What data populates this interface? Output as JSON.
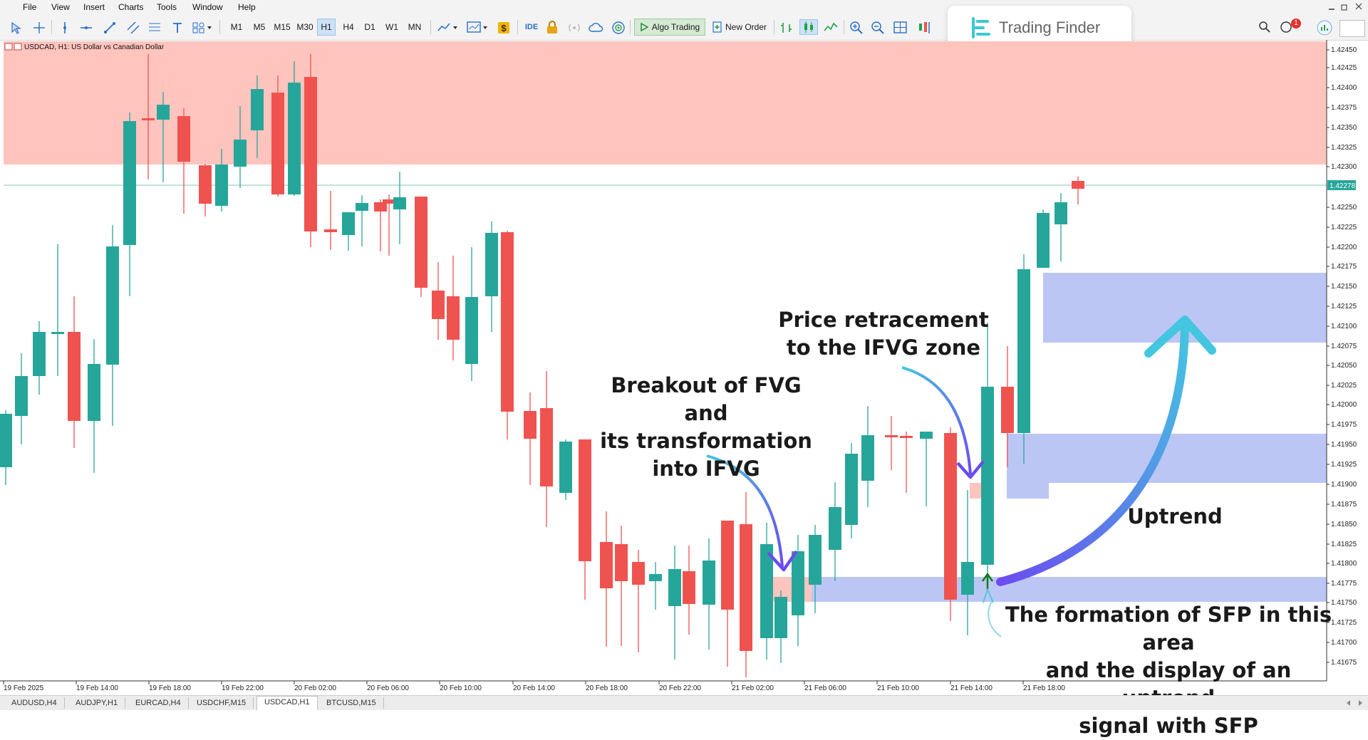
{
  "menu": [
    "File",
    "View",
    "Insert",
    "Charts",
    "Tools",
    "Window",
    "Help"
  ],
  "timeframes": [
    "M1",
    "M5",
    "M15",
    "M30",
    "H1",
    "H4",
    "D1",
    "W1",
    "MN"
  ],
  "active_timeframe": "H1",
  "toolbar": {
    "ide": "IDE",
    "algo": "Algo Trading",
    "new_order": "New Order"
  },
  "logo": {
    "text": "Trading Finder"
  },
  "notification_count": "1",
  "chart": {
    "symbol_label": "USDCAD, H1:  US Dollar vs Canadian Dollar",
    "current_price": "1.42278",
    "price_labels": [
      "1.42450",
      "1.42425",
      "1.42400",
      "1.42375",
      "1.42350",
      "1.42325",
      "1.42300",
      "1.42250",
      "1.42225",
      "1.42200",
      "1.42175",
      "1.42150",
      "1.42125",
      "1.42100",
      "1.42075",
      "1.42050",
      "1.42025",
      "1.42000",
      "1.41975",
      "1.41950",
      "1.41925",
      "1.41900",
      "1.41875",
      "1.41850",
      "1.41825",
      "1.41800",
      "1.41775",
      "1.41750",
      "1.41725",
      "1.41700",
      "1.41675"
    ],
    "time_labels": [
      "19 Feb 2025",
      "19 Feb 14:00",
      "19 Feb 18:00",
      "19 Feb 22:00",
      "20 Feb 02:00",
      "20 Feb 06:00",
      "20 Feb 10:00",
      "20 Feb 14:00",
      "20 Feb 18:00",
      "20 Feb 22:00",
      "21 Feb 02:00",
      "21 Feb 06:00",
      "21 Feb 10:00",
      "21 Feb 14:00",
      "21 Feb 18:00"
    ],
    "colors": {
      "bull": "#26a69a",
      "bear": "#ef5350",
      "supply_zone": "#ffc4bd",
      "demand_zone": "#bcc6f5",
      "fvg_zone": "#fdc5bd",
      "price_line": "#7fc9b8",
      "arrow_gradient_start": "#6a4cf0",
      "arrow_gradient_end": "#44c6e0"
    }
  },
  "annotations": {
    "breakout": "Breakout of FVG and\nits transformation\ninto IFVG",
    "retracement": "Price retracement\nto the IFVG zone",
    "uptrend": "Uptrend",
    "sfp": "The formation of SFP in this area\nand the display of an uptrend\nsignal with SFP"
  },
  "tabs": [
    "AUDUSD,H4",
    "AUDJPY,H1",
    "EURCAD,H4",
    "USDCHF,M15",
    "USDCAD,H1",
    "BTCUSD,M15"
  ],
  "active_tab": "USDCAD,H1"
}
